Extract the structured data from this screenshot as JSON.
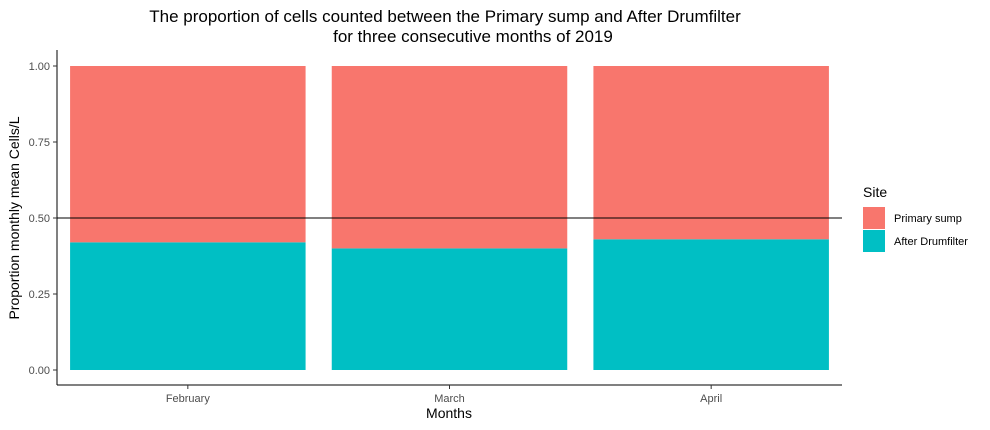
{
  "chart_data": {
    "type": "bar",
    "stacked": true,
    "title_line1": "The proportion of cells counted between the Primary sump and After Drumfilter",
    "title_line2": "for three consecutive months of 2019",
    "xlabel": "Months",
    "ylabel": "Proportion monthly mean Cells/L",
    "categories": [
      "February",
      "March",
      "April"
    ],
    "ylim": [
      0,
      1
    ],
    "yticks": [
      "0.00",
      "0.25",
      "0.50",
      "0.75",
      "1.00"
    ],
    "ytick_values": [
      0,
      0.25,
      0.5,
      0.75,
      1.0
    ],
    "reference_line": 0.5,
    "legend": {
      "title": "Site",
      "position": "right"
    },
    "series": [
      {
        "name": "After Drumfilter",
        "color": "#00BFC4",
        "values": [
          0.42,
          0.4,
          0.43
        ]
      },
      {
        "name": "Primary sump",
        "color": "#F8766D",
        "values": [
          0.58,
          0.6,
          0.57
        ]
      }
    ],
    "legend_order": [
      "Primary sump",
      "After Drumfilter"
    ],
    "grid": false
  }
}
